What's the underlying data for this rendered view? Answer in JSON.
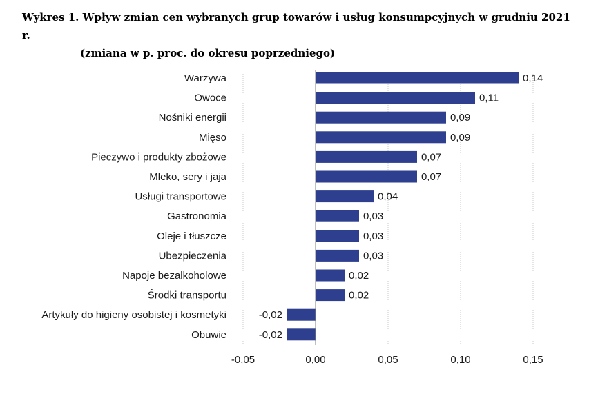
{
  "chart_data": {
    "type": "bar",
    "orientation": "horizontal",
    "title": "Wykres 1. Wpływ zmian cen wybranych grup towarów i usług konsumpcyjnych w grudniu 2021 r.",
    "subtitle": "(zmiana w p. proc. do okresu poprzedniego)",
    "categories": [
      "Warzywa",
      "Owoce",
      "Nośniki energii",
      "Mięso",
      "Pieczywo i produkty zbożowe",
      "Mleko, sery i jaja",
      "Usługi transportowe",
      "Gastronomia",
      "Oleje i tłuszcze",
      "Ubezpieczenia",
      "Napoje bezalkoholowe",
      "Środki transportu",
      "Artykuły do higieny osobistej i kosmetyki",
      "Obuwie"
    ],
    "values": [
      0.14,
      0.11,
      0.09,
      0.09,
      0.07,
      0.07,
      0.04,
      0.03,
      0.03,
      0.03,
      0.02,
      0.02,
      -0.02,
      -0.02
    ],
    "value_labels": [
      "0,14",
      "0,11",
      "0,09",
      "0,09",
      "0,07",
      "0,07",
      "0,04",
      "0,03",
      "0,03",
      "0,03",
      "0,02",
      "0,02",
      "-0,02",
      "-0,02"
    ],
    "xlim": [
      -0.05,
      0.15
    ],
    "xticks": [
      -0.05,
      0.0,
      0.05,
      0.1,
      0.15
    ],
    "xtick_labels": [
      "-0,05",
      "0,00",
      "0,05",
      "0,10",
      "0,15"
    ],
    "xlabel": "",
    "ylabel": "",
    "grid": "vertical dotted",
    "legend": "none",
    "bar_color": "#2e3f8f"
  }
}
